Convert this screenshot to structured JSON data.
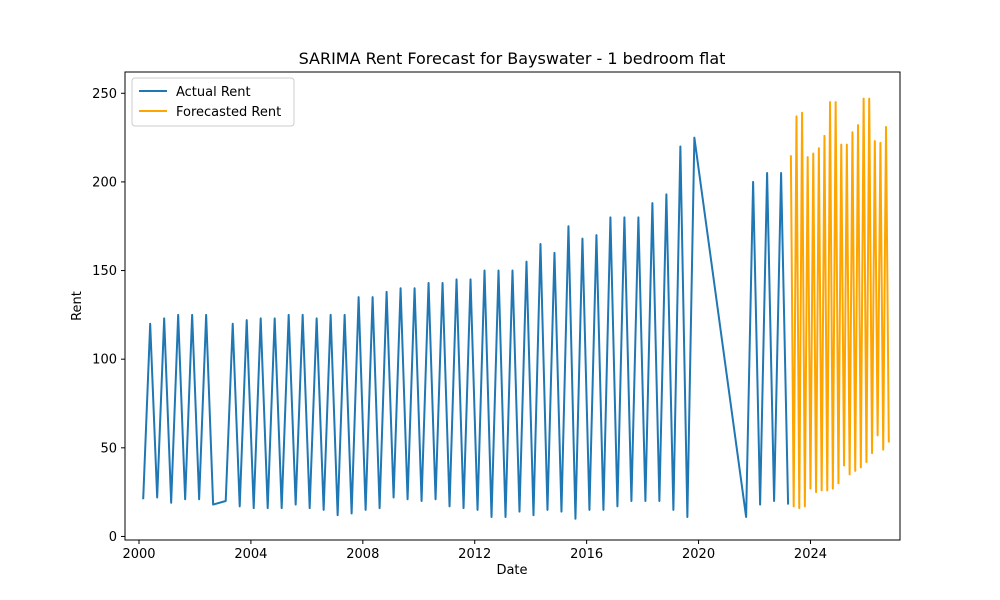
{
  "chart_data": {
    "type": "line",
    "title": "SARIMA Rent Forecast for Bayswater - 1 bedroom flat",
    "xlabel": "Date",
    "ylabel": "Rent",
    "xlim": [
      1999.5,
      2027.2
    ],
    "ylim": [
      -2,
      262
    ],
    "x_ticks": [
      2000,
      2004,
      2008,
      2012,
      2016,
      2020,
      2024
    ],
    "y_ticks": [
      0,
      50,
      100,
      150,
      200,
      250
    ],
    "grid": false,
    "legend_position": "top-left",
    "series": [
      {
        "name": "Actual Rent",
        "color": "#1f77b4",
        "points": [
          [
            2000.15,
            21
          ],
          [
            2000.4,
            120
          ],
          [
            2000.65,
            22
          ],
          [
            2000.9,
            123
          ],
          [
            2001.15,
            19
          ],
          [
            2001.4,
            125
          ],
          [
            2001.65,
            21
          ],
          [
            2001.9,
            125
          ],
          [
            2002.15,
            21
          ],
          [
            2002.4,
            125
          ],
          [
            2002.65,
            18
          ],
          [
            2003.1,
            20
          ],
          [
            2003.35,
            120
          ],
          [
            2003.6,
            17
          ],
          [
            2003.85,
            122
          ],
          [
            2004.1,
            16
          ],
          [
            2004.35,
            123
          ],
          [
            2004.6,
            16
          ],
          [
            2004.85,
            123
          ],
          [
            2005.1,
            16
          ],
          [
            2005.35,
            125
          ],
          [
            2005.6,
            18
          ],
          [
            2005.85,
            125
          ],
          [
            2006.1,
            16
          ],
          [
            2006.35,
            123
          ],
          [
            2006.6,
            15
          ],
          [
            2006.85,
            125
          ],
          [
            2007.1,
            12
          ],
          [
            2007.35,
            125
          ],
          [
            2007.6,
            13
          ],
          [
            2007.85,
            135
          ],
          [
            2008.1,
            15
          ],
          [
            2008.35,
            135
          ],
          [
            2008.6,
            16
          ],
          [
            2008.85,
            138
          ],
          [
            2009.1,
            22
          ],
          [
            2009.35,
            140
          ],
          [
            2009.6,
            21
          ],
          [
            2009.85,
            140
          ],
          [
            2010.1,
            20
          ],
          [
            2010.35,
            143
          ],
          [
            2010.6,
            21
          ],
          [
            2010.85,
            143
          ],
          [
            2011.1,
            17
          ],
          [
            2011.35,
            145
          ],
          [
            2011.6,
            16
          ],
          [
            2011.85,
            145
          ],
          [
            2012.1,
            15
          ],
          [
            2012.35,
            150
          ],
          [
            2012.6,
            11
          ],
          [
            2012.85,
            150
          ],
          [
            2013.1,
            11
          ],
          [
            2013.35,
            150
          ],
          [
            2013.6,
            14
          ],
          [
            2013.85,
            155
          ],
          [
            2014.1,
            12
          ],
          [
            2014.35,
            165
          ],
          [
            2014.6,
            15
          ],
          [
            2014.85,
            160
          ],
          [
            2015.1,
            14
          ],
          [
            2015.35,
            175
          ],
          [
            2015.6,
            10
          ],
          [
            2015.85,
            168
          ],
          [
            2016.1,
            15
          ],
          [
            2016.35,
            170
          ],
          [
            2016.6,
            15
          ],
          [
            2016.85,
            180
          ],
          [
            2017.1,
            17
          ],
          [
            2017.35,
            180
          ],
          [
            2017.6,
            20
          ],
          [
            2017.85,
            180
          ],
          [
            2018.1,
            20
          ],
          [
            2018.35,
            188
          ],
          [
            2018.6,
            20
          ],
          [
            2018.85,
            193
          ],
          [
            2019.1,
            15
          ],
          [
            2019.35,
            220
          ],
          [
            2019.6,
            11
          ],
          [
            2019.85,
            225
          ],
          [
            2021.7,
            11
          ],
          [
            2021.95,
            200
          ],
          [
            2022.2,
            18
          ],
          [
            2022.45,
            205
          ],
          [
            2022.7,
            20
          ],
          [
            2022.95,
            205
          ],
          [
            2023.2,
            18
          ]
        ]
      },
      {
        "name": "Forecasted Rent",
        "color": "#ffa500",
        "points": [
          [
            2023.3,
            215
          ],
          [
            2023.4,
            17
          ],
          [
            2023.5,
            237
          ],
          [
            2023.6,
            16
          ],
          [
            2023.7,
            239
          ],
          [
            2023.8,
            17
          ],
          [
            2023.9,
            214
          ],
          [
            2024.0,
            27
          ],
          [
            2024.1,
            216
          ],
          [
            2024.2,
            25
          ],
          [
            2024.3,
            219
          ],
          [
            2024.4,
            26
          ],
          [
            2024.5,
            226
          ],
          [
            2024.6,
            26
          ],
          [
            2024.7,
            245
          ],
          [
            2024.8,
            27
          ],
          [
            2024.9,
            245
          ],
          [
            2025.0,
            30
          ],
          [
            2025.1,
            221
          ],
          [
            2025.2,
            40
          ],
          [
            2025.3,
            221
          ],
          [
            2025.4,
            35
          ],
          [
            2025.5,
            228
          ],
          [
            2025.6,
            37
          ],
          [
            2025.7,
            232
          ],
          [
            2025.8,
            39
          ],
          [
            2025.9,
            247
          ],
          [
            2026.0,
            42
          ],
          [
            2026.1,
            247
          ],
          [
            2026.2,
            47
          ],
          [
            2026.3,
            223
          ],
          [
            2026.4,
            57
          ],
          [
            2026.5,
            222
          ],
          [
            2026.6,
            49
          ],
          [
            2026.7,
            231
          ],
          [
            2026.8,
            53
          ]
        ]
      }
    ]
  }
}
